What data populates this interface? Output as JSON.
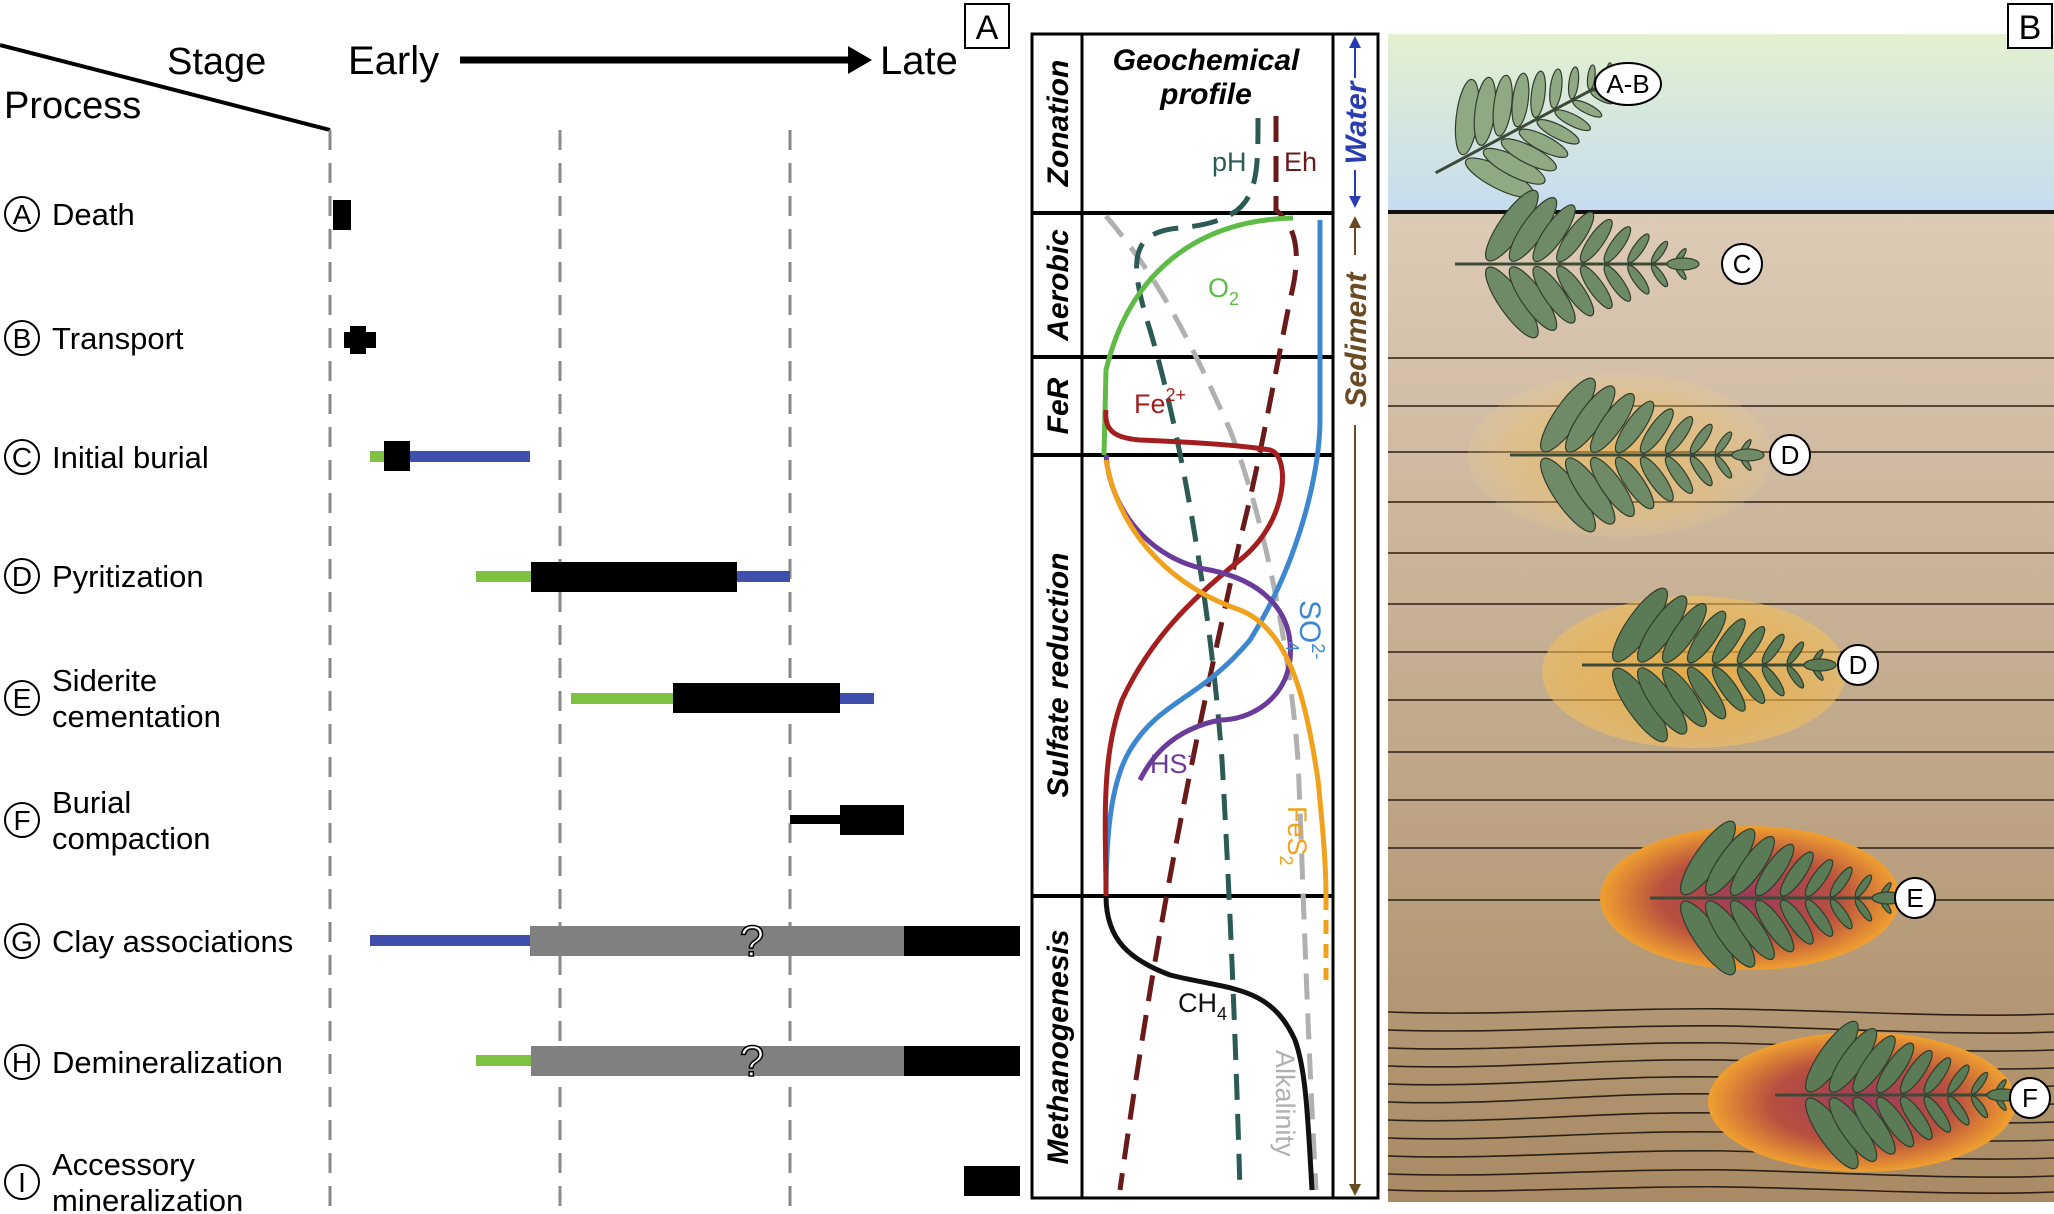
{
  "panels": {
    "a": "A",
    "b": "B"
  },
  "timeline": {
    "stage": "Stage",
    "process": "Process",
    "early": "Early",
    "late": "Late",
    "question_mark": "?",
    "processes": [
      {
        "letter": "A",
        "lines": [
          "Death"
        ]
      },
      {
        "letter": "B",
        "lines": [
          "Transport"
        ]
      },
      {
        "letter": "C",
        "lines": [
          "Initial burial"
        ]
      },
      {
        "letter": "D",
        "lines": [
          "Pyritization"
        ]
      },
      {
        "letter": "E",
        "lines": [
          "Siderite",
          "cementation"
        ]
      },
      {
        "letter": "F",
        "lines": [
          "Burial",
          "compaction"
        ]
      },
      {
        "letter": "G",
        "lines": [
          "Clay associations"
        ]
      },
      {
        "letter": "H",
        "lines": [
          "Demineralization"
        ]
      },
      {
        "letter": "I",
        "lines": [
          "Accessory",
          "mineralization"
        ]
      }
    ]
  },
  "profile": {
    "title_line1": "Geochemical",
    "title_line2": "profile",
    "zones": [
      "Zonation",
      "Aerobic",
      "FeR",
      "Sulfate reduction",
      "Methanogenesis"
    ],
    "water_label": "Water",
    "sediment_label": "Sediment",
    "curve_labels": {
      "ph": "pH",
      "eh": "Eh",
      "o2": "O",
      "o2_sub": "2",
      "fe": "Fe",
      "fe_sup": "2+",
      "so4": "SO",
      "so4_sup": "2-",
      "so4_sub": "4",
      "hs": "HS",
      "hs_sup": "-",
      "fes2": "FeS",
      "fes2_sub": "2",
      "ch4": "CH",
      "ch4_sub": "4",
      "alkalinity": "Alkalinity"
    }
  },
  "scene": {
    "labels": [
      "A-B",
      "C",
      "D",
      "D",
      "E",
      "F"
    ]
  },
  "colors": {
    "green": "#7fc241",
    "blue": "#3f4fae",
    "black": "#000000",
    "gray": "#808080",
    "o2": "#5dbb46",
    "sulfate": "#3d87d0",
    "fe": "#a31f1f",
    "hs": "#6a3b9a",
    "fes2": "#f0a21c",
    "ph": "#2c5a55",
    "eh": "#6b1a1a",
    "ch4": "#111111",
    "alkalinity": "#b0b0b0",
    "water_arrow": "#2a3db0",
    "sediment_arrow": "#6b4a22",
    "fern": "#5b7a56"
  }
}
